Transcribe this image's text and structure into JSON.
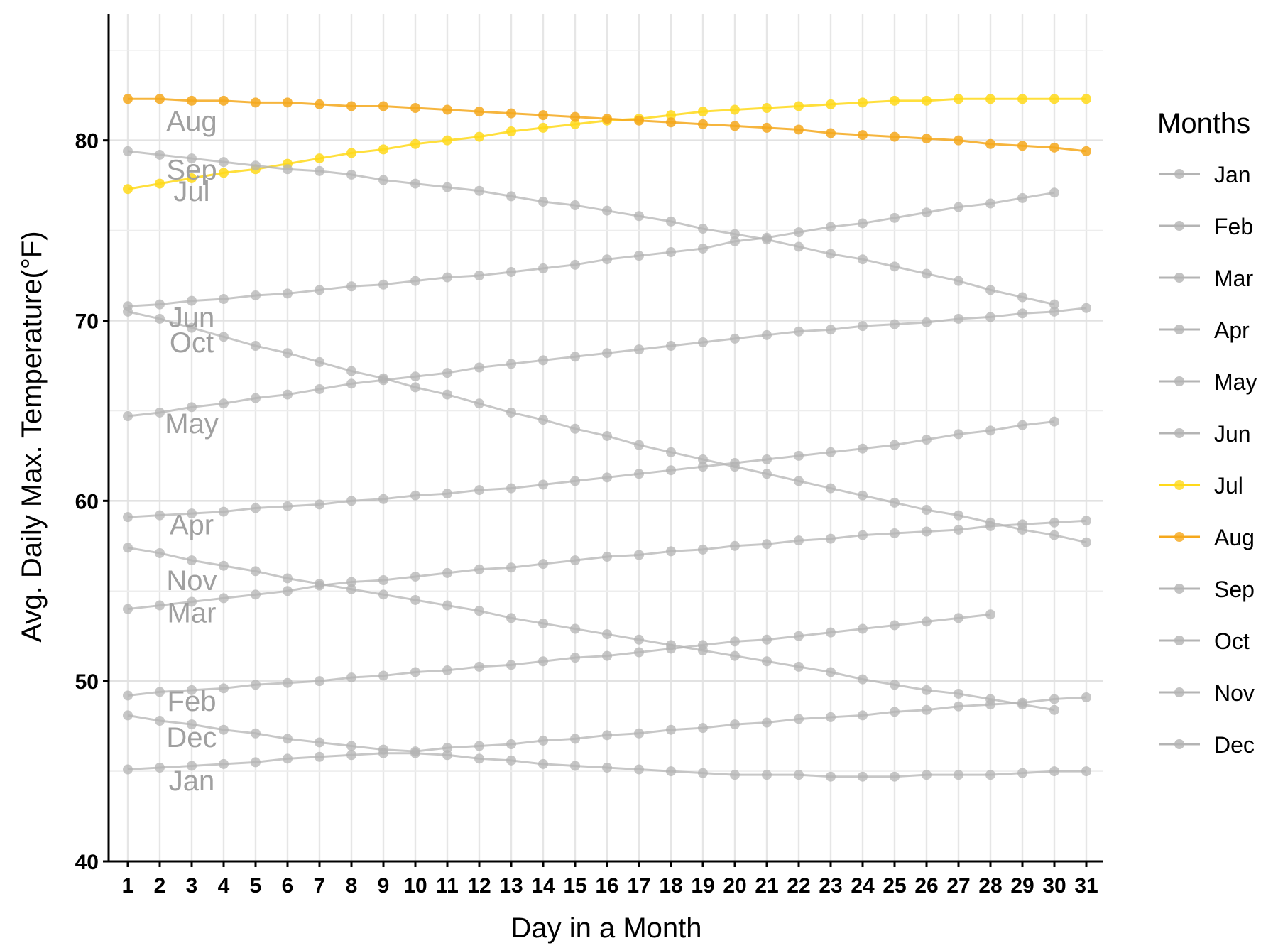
{
  "chart_data": {
    "type": "line",
    "xlabel": "Day in a Month",
    "ylabel": "Avg. Daily Max. Temperature(°F)",
    "ylim": [
      40,
      87
    ],
    "xlim": [
      1,
      31
    ],
    "y_ticks": [
      40,
      50,
      60,
      70,
      80
    ],
    "x_ticks": [
      1,
      2,
      3,
      4,
      5,
      6,
      7,
      8,
      9,
      10,
      11,
      12,
      13,
      14,
      15,
      16,
      17,
      18,
      19,
      20,
      21,
      22,
      23,
      24,
      25,
      26,
      27,
      28,
      29,
      30,
      31
    ],
    "grid": true,
    "legend": {
      "title": "Months",
      "position": "right"
    },
    "colors": {
      "default": "#b4b4b4",
      "Jul": "#ffd91a",
      "Aug": "#f5a81c",
      "label": "#a0a0a0"
    },
    "series": [
      {
        "name": "Jan",
        "label_day": 3,
        "label_y": 44.5,
        "values": [
          45.1,
          45.2,
          45.3,
          45.4,
          45.5,
          45.7,
          45.8,
          45.9,
          46.0,
          46.0,
          45.9,
          45.7,
          45.6,
          45.4,
          45.3,
          45.2,
          45.1,
          45.0,
          44.9,
          44.8,
          44.8,
          44.8,
          44.7,
          44.7,
          44.7,
          44.8,
          44.8,
          44.8,
          44.9,
          45.0,
          45.0
        ]
      },
      {
        "name": "Feb",
        "label_day": 3,
        "label_y": 48.9,
        "values": [
          49.2,
          49.4,
          49.5,
          49.6,
          49.8,
          49.9,
          50.0,
          50.2,
          50.3,
          50.5,
          50.6,
          50.8,
          50.9,
          51.1,
          51.3,
          51.4,
          51.6,
          51.8,
          52.0,
          52.2,
          52.3,
          52.5,
          52.7,
          52.9,
          53.1,
          53.3,
          53.5,
          53.7
        ]
      },
      {
        "name": "Mar",
        "label_day": 3,
        "label_y": 53.8,
        "values": [
          54.0,
          54.2,
          54.4,
          54.6,
          54.8,
          55.0,
          55.3,
          55.5,
          55.6,
          55.8,
          56.0,
          56.2,
          56.3,
          56.5,
          56.7,
          56.9,
          57.0,
          57.2,
          57.3,
          57.5,
          57.6,
          57.8,
          57.9,
          58.1,
          58.2,
          58.3,
          58.4,
          58.6,
          58.7,
          58.8,
          58.9
        ]
      },
      {
        "name": "Apr",
        "label_day": 3,
        "label_y": 58.7,
        "values": [
          59.1,
          59.2,
          59.3,
          59.4,
          59.6,
          59.7,
          59.8,
          60.0,
          60.1,
          60.3,
          60.4,
          60.6,
          60.7,
          60.9,
          61.1,
          61.3,
          61.5,
          61.7,
          61.9,
          62.1,
          62.3,
          62.5,
          62.7,
          62.9,
          63.1,
          63.4,
          63.7,
          63.9,
          64.2,
          64.4
        ]
      },
      {
        "name": "May",
        "label_day": 3,
        "label_y": 64.3,
        "values": [
          64.7,
          64.9,
          65.2,
          65.4,
          65.7,
          65.9,
          66.2,
          66.5,
          66.7,
          66.9,
          67.1,
          67.4,
          67.6,
          67.8,
          68.0,
          68.2,
          68.4,
          68.6,
          68.8,
          69.0,
          69.2,
          69.4,
          69.5,
          69.7,
          69.8,
          69.9,
          70.1,
          70.2,
          70.4,
          70.5,
          70.7
        ]
      },
      {
        "name": "Jun",
        "label_day": 3,
        "label_y": 70.2,
        "values": [
          70.8,
          70.9,
          71.1,
          71.2,
          71.4,
          71.5,
          71.7,
          71.9,
          72.0,
          72.2,
          72.4,
          72.5,
          72.7,
          72.9,
          73.1,
          73.4,
          73.6,
          73.8,
          74.0,
          74.4,
          74.6,
          74.9,
          75.2,
          75.4,
          75.7,
          76.0,
          76.3,
          76.5,
          76.8,
          77.1
        ]
      },
      {
        "name": "Jul",
        "label_day": 3,
        "label_y": 77.2,
        "values": [
          77.3,
          77.6,
          77.9,
          78.2,
          78.4,
          78.7,
          79.0,
          79.3,
          79.5,
          79.8,
          80.0,
          80.2,
          80.5,
          80.7,
          80.9,
          81.1,
          81.2,
          81.4,
          81.6,
          81.7,
          81.8,
          81.9,
          82.0,
          82.1,
          82.2,
          82.2,
          82.3,
          82.3,
          82.3,
          82.3,
          82.3
        ]
      },
      {
        "name": "Aug",
        "label_day": 3,
        "label_y": 81.1,
        "values": [
          82.3,
          82.3,
          82.2,
          82.2,
          82.1,
          82.1,
          82.0,
          81.9,
          81.9,
          81.8,
          81.7,
          81.6,
          81.5,
          81.4,
          81.3,
          81.2,
          81.1,
          81.0,
          80.9,
          80.8,
          80.7,
          80.6,
          80.4,
          80.3,
          80.2,
          80.1,
          80.0,
          79.8,
          79.7,
          79.6,
          79.4
        ]
      },
      {
        "name": "Sep",
        "label_day": 3,
        "label_y": 78.4,
        "values": [
          79.4,
          79.2,
          79.0,
          78.8,
          78.6,
          78.4,
          78.3,
          78.1,
          77.8,
          77.6,
          77.4,
          77.2,
          76.9,
          76.6,
          76.4,
          76.1,
          75.8,
          75.5,
          75.1,
          74.8,
          74.5,
          74.1,
          73.7,
          73.4,
          73.0,
          72.6,
          72.2,
          71.7,
          71.3,
          70.9
        ]
      },
      {
        "name": "Oct",
        "label_day": 3,
        "label_y": 68.8,
        "values": [
          70.5,
          70.1,
          69.6,
          69.1,
          68.6,
          68.2,
          67.7,
          67.2,
          66.8,
          66.3,
          65.9,
          65.4,
          64.9,
          64.5,
          64.0,
          63.6,
          63.1,
          62.7,
          62.3,
          61.9,
          61.5,
          61.1,
          60.7,
          60.3,
          59.9,
          59.5,
          59.2,
          58.8,
          58.4,
          58.1,
          57.7
        ]
      },
      {
        "name": "Nov",
        "label_day": 3,
        "label_y": 55.6,
        "values": [
          57.4,
          57.1,
          56.7,
          56.4,
          56.1,
          55.7,
          55.4,
          55.1,
          54.8,
          54.5,
          54.2,
          53.9,
          53.5,
          53.2,
          52.9,
          52.6,
          52.3,
          52.0,
          51.7,
          51.4,
          51.1,
          50.8,
          50.5,
          50.1,
          49.8,
          49.5,
          49.3,
          49.0,
          48.7,
          48.4
        ]
      },
      {
        "name": "Dec",
        "label_day": 3,
        "label_y": 46.9,
        "values": [
          48.1,
          47.8,
          47.6,
          47.3,
          47.1,
          46.8,
          46.6,
          46.4,
          46.2,
          46.1,
          46.3,
          46.4,
          46.5,
          46.7,
          46.8,
          47.0,
          47.1,
          47.3,
          47.4,
          47.6,
          47.7,
          47.9,
          48.0,
          48.1,
          48.3,
          48.4,
          48.6,
          48.7,
          48.8,
          49.0,
          49.1
        ]
      }
    ]
  }
}
